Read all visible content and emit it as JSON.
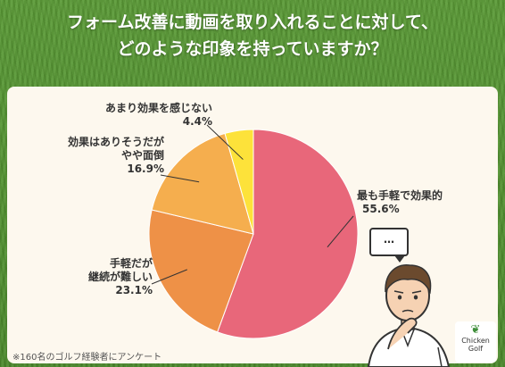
{
  "title_line1": "フォーム改善に動画を取り入れることに対して、",
  "title_line2": "どのような印象を持っていますか？",
  "note": "※160名のゴルフ経験者にアンケート",
  "bubble_text": "…",
  "logo_text_1": "Chicken",
  "logo_text_2": "Golf",
  "colors": {
    "background": "#4f8d2f",
    "panel": "#fdf8ee",
    "slice_1": "#e8677a",
    "slice_2": "#ee9147",
    "slice_3": "#f5ae4e",
    "slice_4": "#fde23a"
  },
  "chart_data": {
    "type": "pie",
    "title": "",
    "slices": [
      {
        "label_line1": "最も手軽で効果的",
        "label_line2": "",
        "value": 55.6,
        "value_label": "55.6%",
        "color": "#e8677a"
      },
      {
        "label_line1": "手軽だが",
        "label_line2": "継続が難しい",
        "value": 23.1,
        "value_label": "23.1%",
        "color": "#ee9147"
      },
      {
        "label_line1": "効果はありそうだが",
        "label_line2": "やや面倒",
        "value": 16.9,
        "value_label": "16.9%",
        "color": "#f5ae4e"
      },
      {
        "label_line1": "あまり効果を感じない",
        "label_line2": "",
        "value": 4.4,
        "value_label": "4.4%",
        "color": "#fde23a"
      }
    ]
  }
}
